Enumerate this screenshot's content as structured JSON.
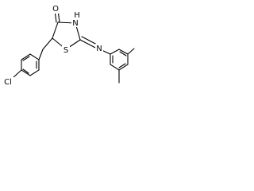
{
  "labels": [
    "O",
    "H",
    "N",
    "S",
    "N",
    "Cl"
  ]
}
